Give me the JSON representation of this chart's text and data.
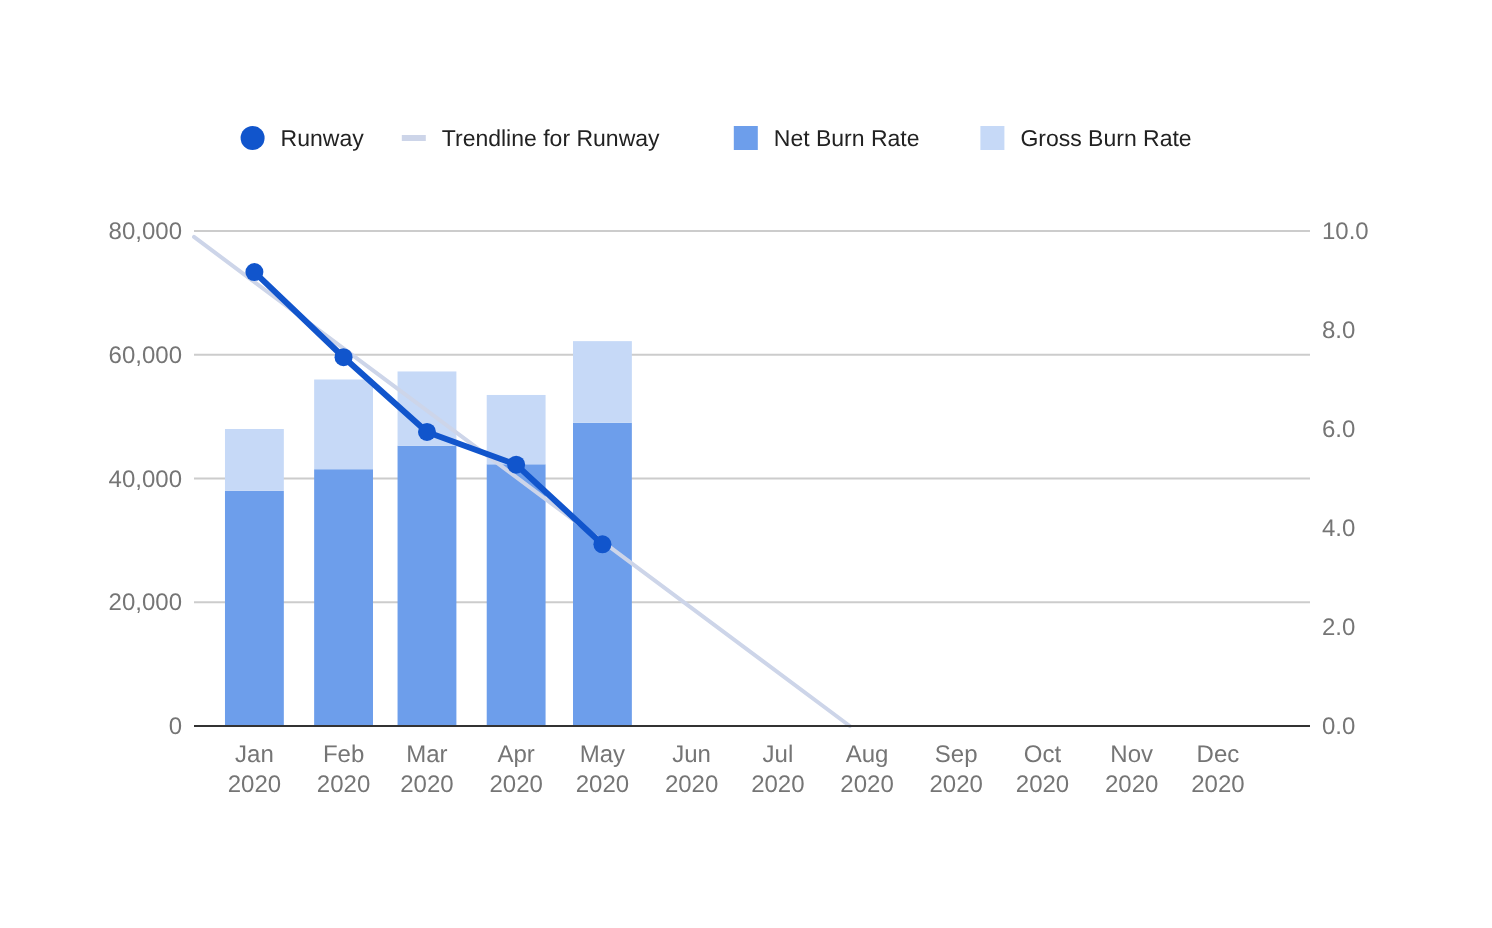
{
  "chart_data": {
    "type": "bar",
    "stacked": true,
    "legend": "top",
    "grid": "y",
    "x": [
      "2020-01",
      "2020-02",
      "2020-03",
      "2020-04",
      "2020-05"
    ],
    "xlim": [
      "2019-12-11",
      "2021-01-02"
    ],
    "xticks": [
      {
        "value": "2020-01",
        "label": "Jan 2020"
      },
      {
        "value": "2020-02",
        "label": "Feb 2020"
      },
      {
        "value": "2020-03",
        "label": "Mar 2020"
      },
      {
        "value": "2020-04",
        "label": "Apr 2020"
      },
      {
        "value": "2020-05",
        "label": "May 2020"
      },
      {
        "value": "2020-06",
        "label": "Jun 2020"
      },
      {
        "value": "2020-07",
        "label": "Jul 2020"
      },
      {
        "value": "2020-08",
        "label": "Aug 2020"
      },
      {
        "value": "2020-09",
        "label": "Sep 2020"
      },
      {
        "value": "2020-10",
        "label": "Oct 2020"
      },
      {
        "value": "2020-11",
        "label": "Nov 2020"
      },
      {
        "value": "2020-12",
        "label": "Dec 2020"
      }
    ],
    "ylim": [
      0,
      80000
    ],
    "yticks": [
      0,
      {
        "value": 20000,
        "label": "20,000"
      },
      {
        "value": 40000,
        "label": "40,000"
      },
      {
        "value": 60000,
        "label": "60,000"
      },
      {
        "value": 80000,
        "label": "80,000"
      }
    ],
    "y2lim": [
      0,
      10
    ],
    "y2ticks": [
      {
        "value": 0,
        "label": "0.0"
      },
      {
        "value": 2,
        "label": "2.0"
      },
      {
        "value": 4,
        "label": "4.0"
      },
      {
        "value": 6,
        "label": "6.0"
      },
      {
        "value": 8,
        "label": "8.0"
      },
      {
        "value": 10,
        "label": "10.0"
      }
    ],
    "series": [
      {
        "name": "Runway",
        "type": "line",
        "axis": "y2",
        "color": "#1155cc",
        "marker": "circle",
        "values": [
          9.17,
          7.45,
          5.94,
          5.28,
          3.67
        ]
      },
      {
        "name": "Trendline for Runway",
        "type": "line",
        "axis": "y2",
        "color": "#cdd5e9",
        "marker": "none",
        "x": [
          "2019-12-11",
          "2020-07-26"
        ],
        "values": [
          9.88,
          0
        ]
      },
      {
        "name": "Net Burn Rate",
        "color": "#6d9eeb",
        "values": [
          38000,
          41500,
          45300,
          42300,
          49000
        ]
      },
      {
        "name": "Gross Burn Rate",
        "color": "#c6d9f7",
        "values": [
          10000,
          14500,
          12000,
          11200,
          13200
        ]
      }
    ]
  }
}
